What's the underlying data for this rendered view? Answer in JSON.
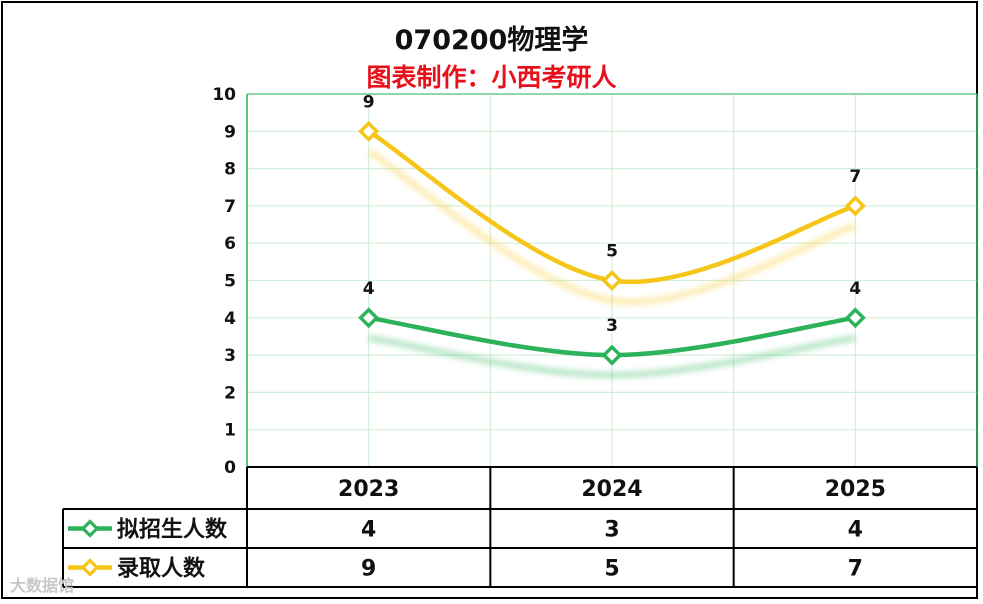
{
  "chart_data": {
    "type": "line",
    "title": "070200物理学",
    "subtitle": "图表制作：小西考研人",
    "categories": [
      "2023",
      "2024",
      "2025"
    ],
    "series": [
      {
        "name": "拟招生人数",
        "values": [
          4,
          3,
          4
        ],
        "color": "#2cb25a"
      },
      {
        "name": "录取人数",
        "values": [
          9,
          5,
          7
        ],
        "color": "#f5c518"
      }
    ],
    "y_ticks": [
      "0",
      "1",
      "2",
      "3",
      "4",
      "5",
      "6",
      "7",
      "8",
      "9",
      "10"
    ],
    "ylim": [
      0,
      10
    ],
    "grid": true,
    "legend": "data-table-below"
  },
  "watermark": "大数据馆"
}
